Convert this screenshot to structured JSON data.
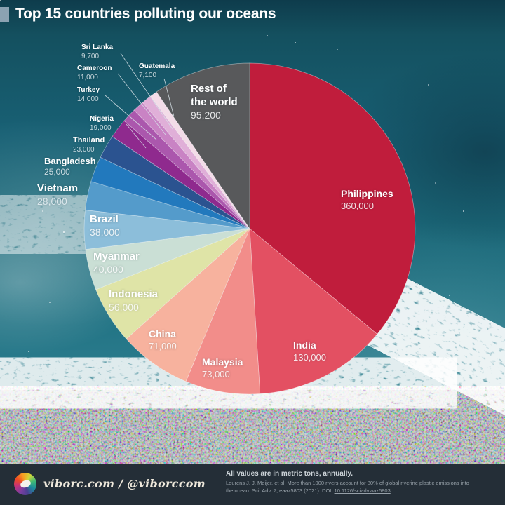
{
  "title": "Top 15 countries polluting our oceans",
  "chart_data": {
    "type": "pie",
    "title": "Top 15 countries polluting our oceans",
    "unit": "metric tons, annually",
    "total": 1000000,
    "direction": "clockwise",
    "start_angle_deg": 0,
    "slices": [
      {
        "id": "philippines",
        "label": "Philippines",
        "value": 360000,
        "display": "360,000",
        "color": "#c01d3c"
      },
      {
        "id": "india",
        "label": "India",
        "value": 130000,
        "display": "130,000",
        "color": "#e35062"
      },
      {
        "id": "malaysia",
        "label": "Malaysia",
        "value": 73000,
        "display": "73,000",
        "color": "#f28d8a"
      },
      {
        "id": "china",
        "label": "China",
        "value": 71000,
        "display": "71,000",
        "color": "#f7b29e"
      },
      {
        "id": "indonesia",
        "label": "Indonesia",
        "value": 56000,
        "display": "56,000",
        "color": "#dfe4a7"
      },
      {
        "id": "myanmar",
        "label": "Myanmar",
        "value": 40000,
        "display": "40,000",
        "color": "#cadfd5"
      },
      {
        "id": "brazil",
        "label": "Brazil",
        "value": 38000,
        "display": "38,000",
        "color": "#8cbeda"
      },
      {
        "id": "vietnam",
        "label": "Vietnam",
        "value": 28000,
        "display": "28,000",
        "color": "#549bcb"
      },
      {
        "id": "bangladesh",
        "label": "Bangladesh",
        "value": 25000,
        "display": "25,000",
        "color": "#2279bd"
      },
      {
        "id": "thailand",
        "label": "Thailand",
        "value": 23000,
        "display": "23,000",
        "color": "#2b5390"
      },
      {
        "id": "nigeria",
        "label": "Nigeria",
        "value": 19000,
        "display": "19,000",
        "color": "#8f2a8e"
      },
      {
        "id": "turkey",
        "label": "Turkey",
        "value": 14000,
        "display": "14,000",
        "color": "#ab57ad"
      },
      {
        "id": "cameroon",
        "label": "Cameroon",
        "value": 11000,
        "display": "11,000",
        "color": "#c983c4"
      },
      {
        "id": "sri_lanka",
        "label": "Sri Lanka",
        "value": 9700,
        "display": "9,700",
        "color": "#e0afd8"
      },
      {
        "id": "guatemala",
        "label": "Guatemala",
        "value": 7100,
        "display": "7,100",
        "color": "#f3dce8"
      },
      {
        "id": "rest",
        "label": "Rest of the world",
        "value": 95200,
        "display": "95,200",
        "color": "#58595b"
      }
    ]
  },
  "footer": {
    "brand": "viborc.com / @viborccom",
    "note": "All values are in metric tons, annually.",
    "source_line1": "Lourens J. J. Meijer, et al. More than 1000 rivers account for 80% of global riverine plastic emissions into",
    "source_line2_prefix": "the ocean. Sci. Adv. 7, eaaz5803 (2021). DOI: ",
    "source_link": "10.1126/sciadv.aaz5803"
  },
  "colors": {
    "title_text": "#ffffff",
    "title_marker": "#8ba2b2",
    "footer_bg": "#242e37",
    "ocean_base": "#1b6879",
    "leader_line": "#d7e2e8"
  }
}
